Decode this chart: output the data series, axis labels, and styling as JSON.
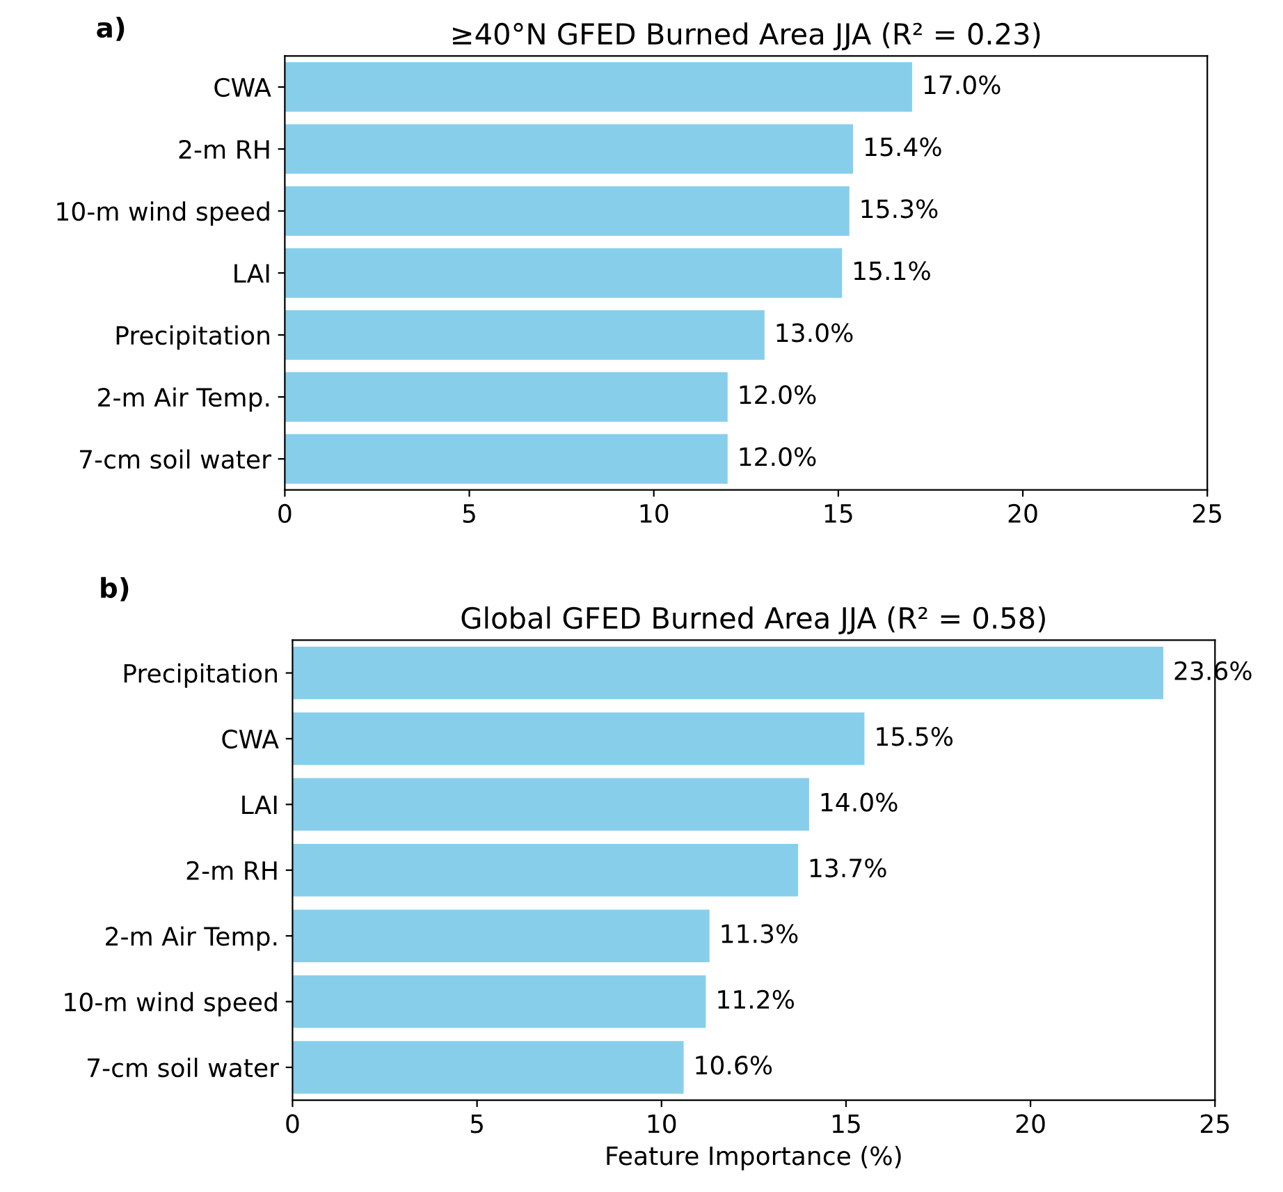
{
  "chart_data": [
    {
      "type": "bar",
      "orientation": "horizontal",
      "title": "≥40°N GFED Burned Area JJA (R² = 0.23)",
      "annotations": [
        "a)"
      ],
      "categories": [
        "CWA",
        "2-m RH",
        "10-m wind speed",
        "LAI",
        "Precipitation",
        "2-m Air Temp.",
        "7-cm soil water"
      ],
      "values": [
        17.0,
        15.4,
        15.3,
        15.1,
        13.0,
        12.0,
        12.0
      ],
      "color": "#87ceeb",
      "value_labels": [
        "17.0%",
        "15.4%",
        "15.3%",
        "15.1%",
        "13.0%",
        "12.0%",
        "12.0%"
      ],
      "xlim": [
        0,
        25
      ],
      "xticks": [
        0,
        5,
        10,
        15,
        20,
        25
      ],
      "grid": false,
      "legend": false
    },
    {
      "type": "bar",
      "orientation": "horizontal",
      "title": "Global GFED Burned Area JJA (R² = 0.58)",
      "xlabel": "Feature Importance (%)",
      "annotations": [
        "b)"
      ],
      "categories": [
        "Precipitation",
        "CWA",
        "LAI",
        "2-m RH",
        "2-m Air Temp.",
        "10-m wind speed",
        "7-cm soil water"
      ],
      "values": [
        23.6,
        15.5,
        14.0,
        13.7,
        11.3,
        11.2,
        10.6
      ],
      "color": "#87ceeb",
      "value_labels": [
        "23.6%",
        "15.5%",
        "14.0%",
        "13.7%",
        "11.3%",
        "11.2%",
        "10.6%"
      ],
      "xlim": [
        0,
        25
      ],
      "xticks": [
        0,
        5,
        10,
        15,
        20,
        25
      ],
      "grid": false,
      "legend": false
    }
  ]
}
